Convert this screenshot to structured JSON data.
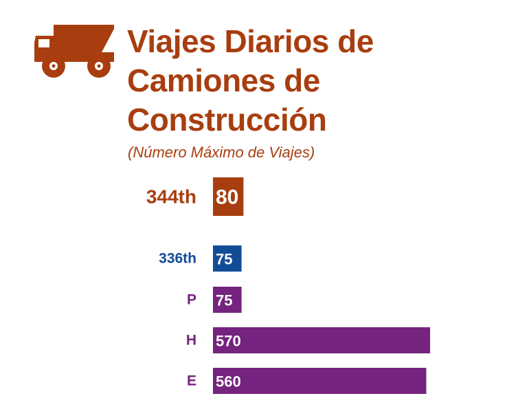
{
  "header": {
    "title_lines": [
      "Viajes Diarios de",
      "Camiones de",
      "Construcción"
    ],
    "subtitle": "(Número Máximo de Viajes)",
    "icon": "dump-truck-icon"
  },
  "colors": {
    "title": "#a83e10",
    "bar_344th": "#a83e10",
    "bar_336th": "#124c96",
    "bar_options": "#74237e"
  },
  "chart_data": {
    "type": "bar",
    "orientation": "horizontal",
    "categories": [
      "344th",
      "336th",
      "P",
      "H",
      "E"
    ],
    "values": [
      80,
      75,
      75,
      570,
      560
    ],
    "colors": [
      "#a83e10",
      "#124c96",
      "#74237e",
      "#74237e",
      "#74237e"
    ],
    "title": "Viajes Diarios de Camiones de Construcción",
    "subtitle": "(Número Máximo de Viajes)",
    "xlabel": "",
    "ylabel": "",
    "data_labels": true,
    "grid": false,
    "legend": "none"
  }
}
